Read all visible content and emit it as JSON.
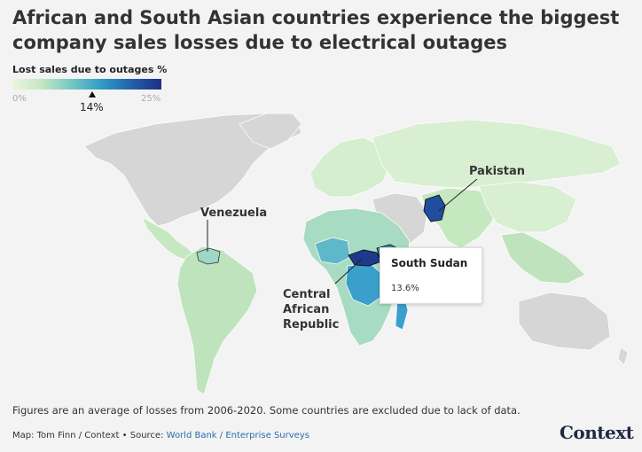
{
  "title": "African and South Asian countries experience the biggest company sales losses due to electrical outages",
  "legend": {
    "title": "Lost sales due to outages %",
    "min_label": "0%",
    "max_label": "25%",
    "marker_label": "14%",
    "marker_value": 14,
    "colors": [
      "#eaf6e0",
      "#c3e6c3",
      "#72c8c2",
      "#2f9cc6",
      "#2261a8",
      "#1d2f85"
    ]
  },
  "annotations": {
    "pakistan": "Pakistan",
    "venezuela": "Venezuela",
    "car_line1": "Central",
    "car_line2": "African",
    "car_line3": "Republic"
  },
  "tooltip": {
    "country": "South Sudan",
    "value": "13.6%"
  },
  "note": "Figures are an average of losses from 2006-2020. Some countries are excluded due to lack of data.",
  "credit": {
    "prefix": "Map: Tom Finn / Context • Source: ",
    "source": "World Bank / Enterprise Surveys"
  },
  "logo": "Context",
  "colors": {
    "no_data": "#d6d6d6",
    "low": "#d8f0d2",
    "mid_low": "#b9e3b8",
    "mid": "#6fc7c0",
    "mid_high": "#3a9fcb",
    "high": "#1d3a8f"
  }
}
